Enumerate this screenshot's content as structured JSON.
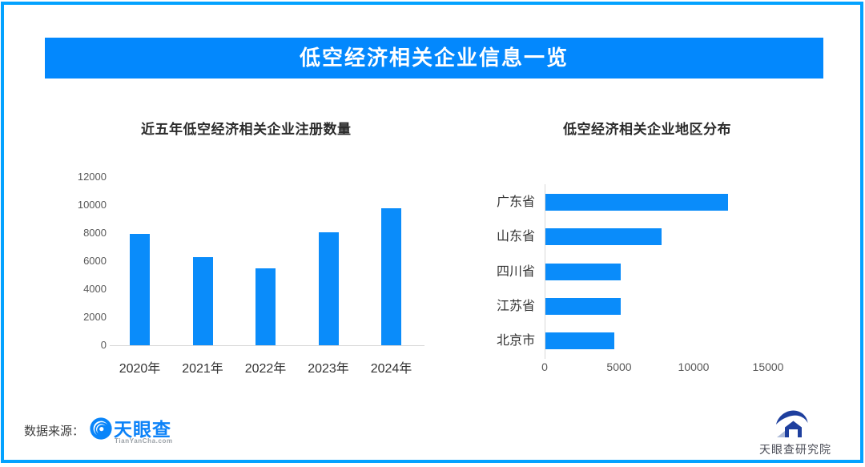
{
  "banner": {
    "title": "低空经济相关企业信息一览"
  },
  "colors": {
    "frame": "#03A2FF",
    "banner": "#0388FD",
    "bar": "#0A8CFA",
    "axis_line": "#D8D8D8",
    "tick_text": "#595959",
    "label_text": "#333333",
    "title_text": "#2b2b2b",
    "brand_blue": "#0C82F8",
    "logo_navy": "#1E3F9E"
  },
  "chart_data": [
    {
      "type": "bar",
      "orientation": "vertical",
      "title": "近五年低空经济相关企业注册数量",
      "categories": [
        "2020年",
        "2021年",
        "2022年",
        "2023年",
        "2024年"
      ],
      "values": [
        7950,
        6300,
        5500,
        8050,
        9750
      ],
      "xlabel": "",
      "ylabel": "",
      "ylim": [
        0,
        12000
      ],
      "yticks": [
        0,
        2000,
        4000,
        6000,
        8000,
        10000,
        12000
      ],
      "grid": false,
      "legend": false
    },
    {
      "type": "bar",
      "orientation": "horizontal",
      "title": "低空经济相关企业地区分布",
      "categories": [
        "广东省",
        "山东省",
        "四川省",
        "江苏省",
        "北京市"
      ],
      "values": [
        12250,
        7800,
        5050,
        5050,
        4650
      ],
      "xlabel": "",
      "ylabel": "",
      "xlim": [
        0,
        15000
      ],
      "xticks": [
        0,
        5000,
        10000,
        15000
      ],
      "grid": false,
      "legend": false
    }
  ],
  "footer": {
    "source_label": "数据来源：",
    "brand_name": "天眼查",
    "brand_domain": "TianYanCha.com",
    "org_name": "天眼查研究院"
  },
  "icons": {
    "brand_logo": "tianyancha-eye-icon",
    "org_logo": "tianyancha-institute-icon"
  }
}
